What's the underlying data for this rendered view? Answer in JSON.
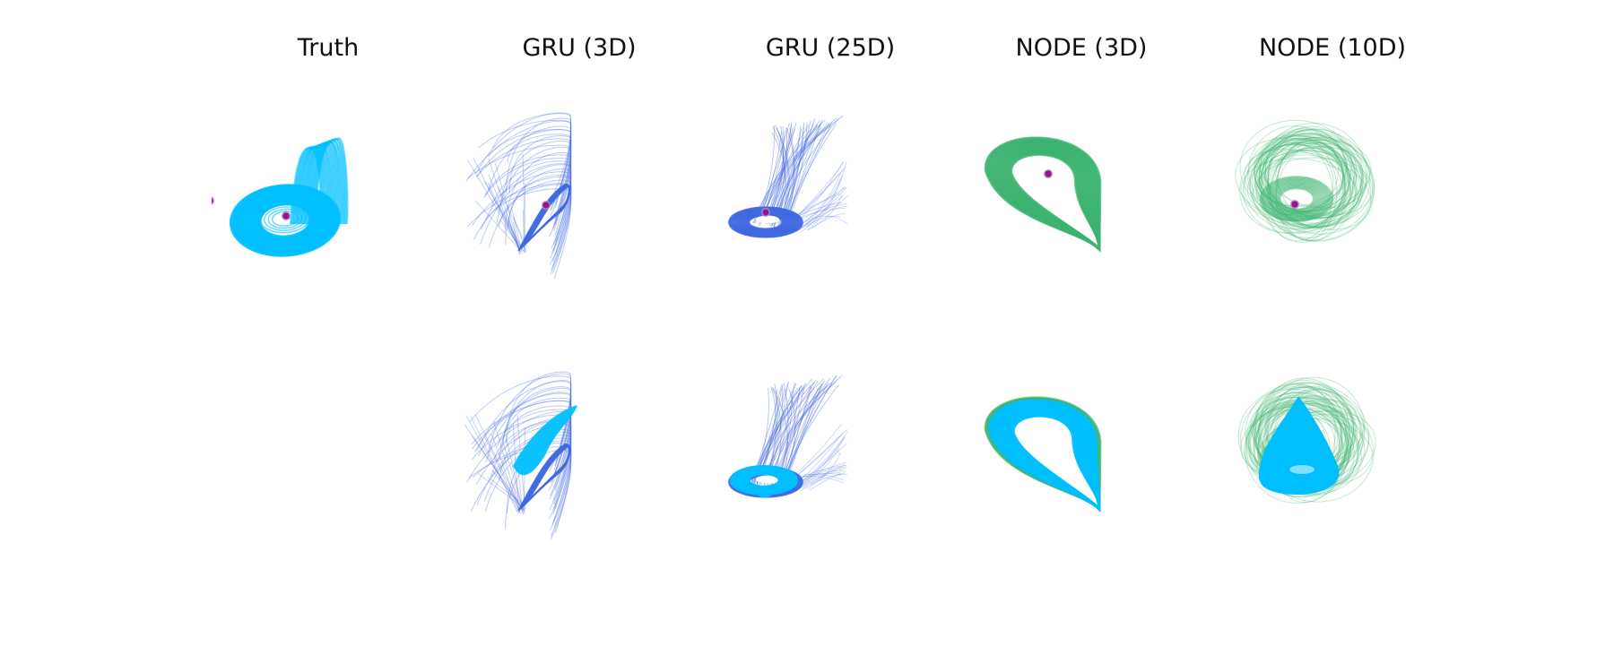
{
  "figure": {
    "columns": [
      {
        "key": "truth",
        "title": "Truth"
      },
      {
        "key": "gru3",
        "title": "GRU (3D)"
      },
      {
        "key": "gru25",
        "title": "GRU (25D)"
      },
      {
        "key": "node3",
        "title": "NODE (3D)"
      },
      {
        "key": "node10",
        "title": "NODE (10D)"
      }
    ],
    "rows": [
      {
        "key": "learned_model"
      },
      {
        "key": "overlay_with_truth"
      }
    ],
    "colors": {
      "truth": "#00bfff",
      "gru": "#4169e1",
      "node": "#3cb371",
      "fixed_point": "#8b1a89"
    },
    "panels": {
      "truth_row1": {
        "style": "truth",
        "fixed_points": 2
      },
      "truth_row2": {
        "style": "empty"
      },
      "gru3_row1": {
        "style": "gru_skew",
        "fixed_points": 1
      },
      "gru3_row2": {
        "style": "gru_skew",
        "overlay_truth": true
      },
      "gru25_row1": {
        "style": "gru_fan",
        "fixed_points": 1
      },
      "gru25_row2": {
        "style": "gru_fan",
        "overlay_truth": true
      },
      "node3_row1": {
        "style": "node_drop",
        "fixed_points": 1
      },
      "node3_row2": {
        "style": "node_drop",
        "overlay_truth": true
      },
      "node10_row1": {
        "style": "node_cloud",
        "fixed_points": 1
      },
      "node10_row2": {
        "style": "node_cloud",
        "overlay_truth": true
      }
    }
  }
}
